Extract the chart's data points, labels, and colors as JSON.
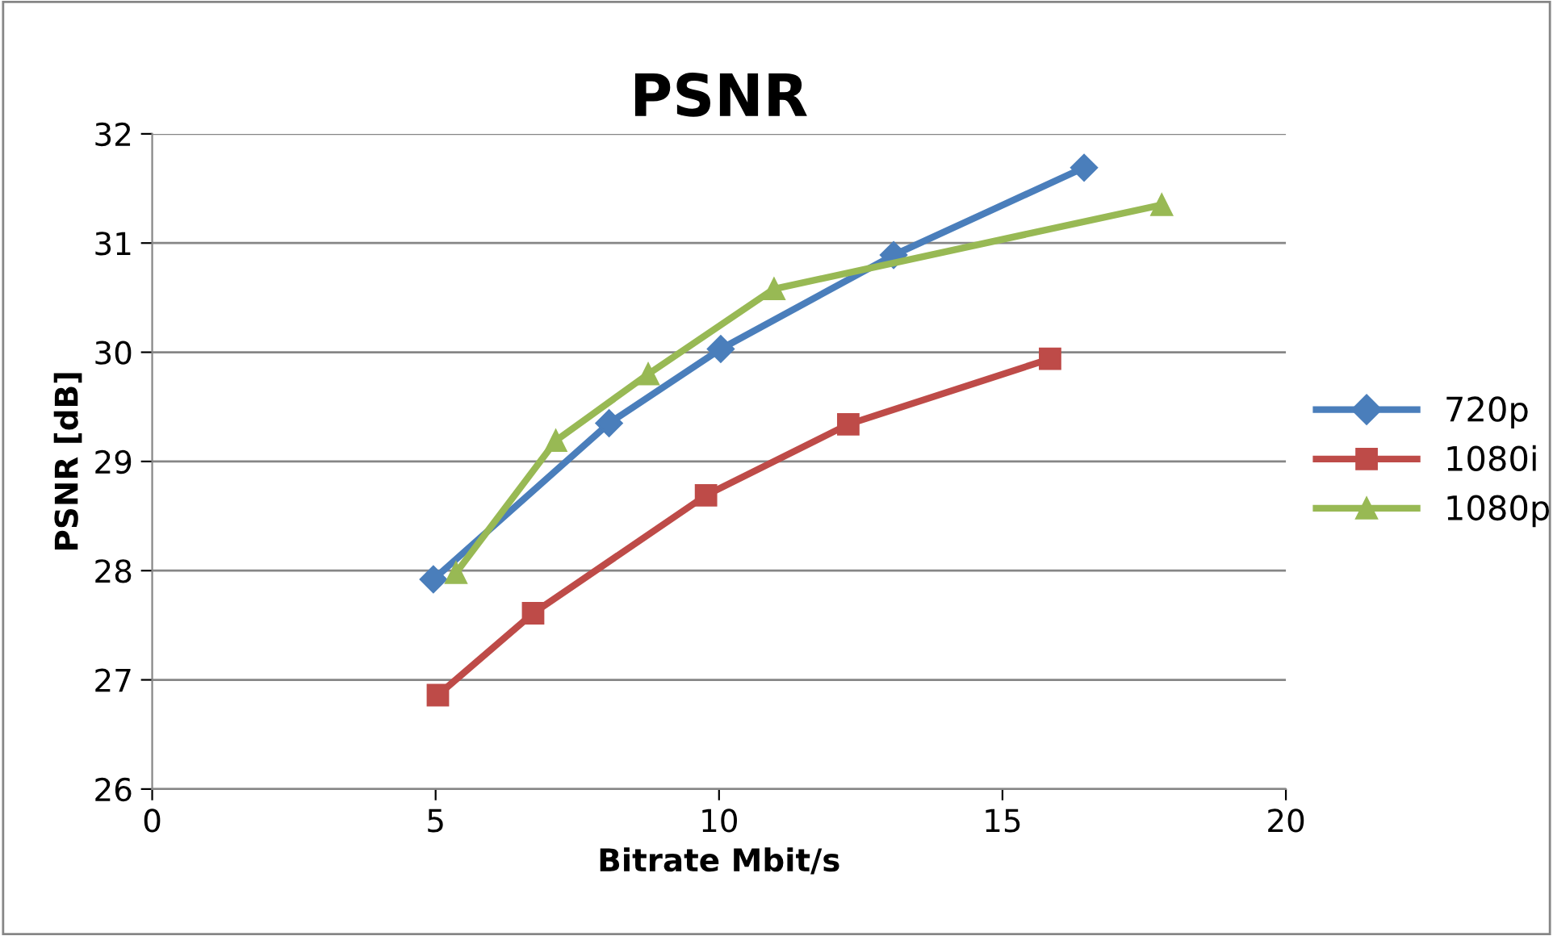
{
  "chart_data": {
    "type": "line",
    "title": "PSNR",
    "xlabel": "Bitrate Mbit/s",
    "ylabel": "PSNR [dB]",
    "xlim": [
      0,
      20
    ],
    "xticks": [
      0,
      5,
      10,
      15,
      20
    ],
    "ylim": [
      26,
      32
    ],
    "yticks": [
      26,
      27,
      28,
      29,
      30,
      31,
      32
    ],
    "grid": "y",
    "legend": "right",
    "line_style": "solid",
    "series": [
      {
        "name": "720p",
        "color": "#4a7ebb",
        "marker": "diamond",
        "x": [
          4.96,
          8.06,
          10.03,
          13.08,
          16.44
        ],
        "values": [
          27.92,
          29.35,
          30.03,
          30.89,
          31.69
        ]
      },
      {
        "name": "1080i",
        "color": "#be4b48",
        "marker": "square",
        "x": [
          5.04,
          6.72,
          9.77,
          12.28,
          15.84
        ],
        "values": [
          26.86,
          27.61,
          28.69,
          29.34,
          29.94
        ]
      },
      {
        "name": "1080p",
        "color": "#98b954",
        "marker": "triangle",
        "x": [
          5.36,
          7.12,
          8.75,
          10.97,
          17.81
        ],
        "values": [
          27.98,
          29.19,
          29.8,
          30.58,
          31.35
        ]
      }
    ]
  }
}
